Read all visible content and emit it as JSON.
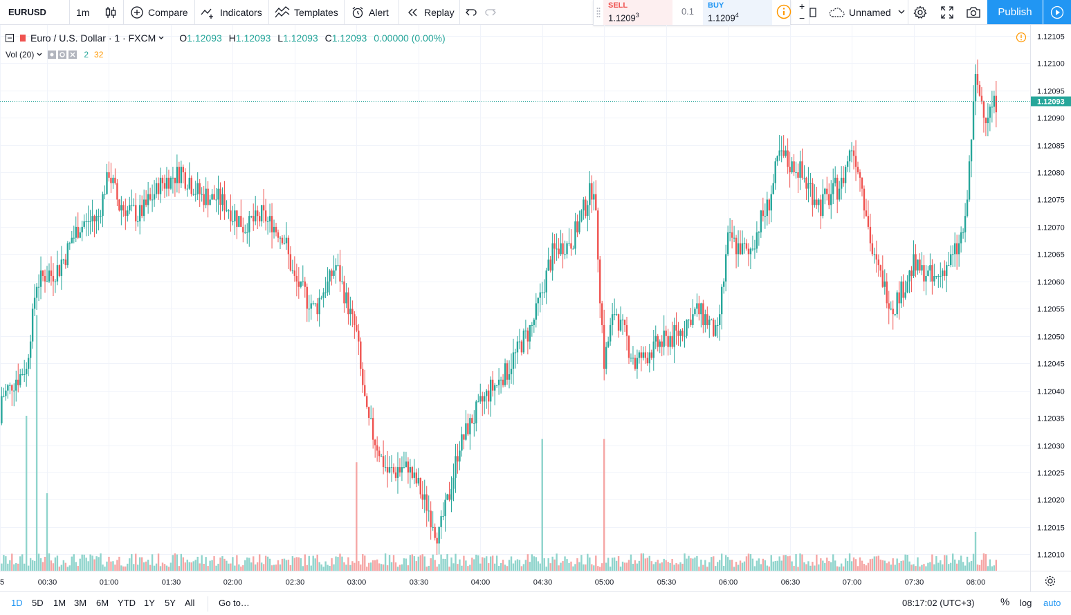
{
  "toolbar": {
    "symbol": "EURUSD",
    "interval": "1m",
    "chart_type_icon": "candles-icon",
    "compare_label": "Compare",
    "indicators_label": "Indicators",
    "templates_label": "Templates",
    "alert_label": "Alert",
    "replay_label": "Replay",
    "layout_name": "Unnamed",
    "publish_label": "Publish"
  },
  "trade": {
    "sell_label": "SELL",
    "sell_price_main": "1.1209",
    "sell_price_sup": "3",
    "spread": "0.1",
    "buy_label": "BUY",
    "buy_price_main": "1.1209",
    "buy_price_sup": "4",
    "plus": "+",
    "minus": "−"
  },
  "legend": {
    "title": "Euro / U.S. Dollar · 1 · FXCM",
    "o_label": "O",
    "o_value": "1.12093",
    "h_label": "H",
    "h_value": "1.12093",
    "l_label": "L",
    "l_value": "1.12093",
    "c_label": "C",
    "c_value": "1.12093",
    "change": "0.00000 (0.00%)",
    "vol_label": "Vol (20)",
    "vol_up": "2",
    "vol_ma": "32"
  },
  "colors": {
    "up": "#26a69a",
    "down": "#ef5350",
    "vol_up": "#8fd4cc",
    "vol_down": "#f5a6a5",
    "accent": "#2196f3",
    "vol_ma": "#ff9800"
  },
  "bottom": {
    "ranges": [
      "1D",
      "5D",
      "1M",
      "3M",
      "6M",
      "YTD",
      "1Y",
      "5Y",
      "All"
    ],
    "active_range": "1D",
    "goto_label": "Go to…",
    "time": "08:17:02 (UTC+3)",
    "percent_label": "%",
    "log_label": "log",
    "auto_label": "auto"
  },
  "chart_data": {
    "type": "candlestick",
    "symbol": "EURUSD",
    "interval": "1m",
    "y_ticks": [
      "1.12105",
      "1.12100",
      "1.12095",
      "1.12090",
      "1.12085",
      "1.12080",
      "1.12075",
      "1.12070",
      "1.12065",
      "1.12060",
      "1.12055",
      "1.12050",
      "1.12045",
      "1.12040",
      "1.12035",
      "1.12030",
      "1.12025",
      "1.12020",
      "1.12015",
      "1.12010"
    ],
    "ylim": [
      1.12007,
      1.12107
    ],
    "x_ticks": [
      "00:30",
      "01:00",
      "01:30",
      "02:00",
      "02:30",
      "03:00",
      "03:30",
      "04:00",
      "04:30",
      "05:00",
      "05:30",
      "06:00",
      "06:30",
      "07:00",
      "07:30",
      "08:00"
    ],
    "last_price_label": "1.12093",
    "last_price": 1.12093,
    "close_path": [
      [
        "00:00",
        1.12034
      ],
      [
        "00:10",
        1.1204
      ],
      [
        "00:20",
        1.12044
      ],
      [
        "00:25",
        1.1206
      ],
      [
        "00:35",
        1.12062
      ],
      [
        "00:45",
        1.1207
      ],
      [
        "00:55",
        1.12072
      ],
      [
        "01:00",
        1.1208
      ],
      [
        "01:05",
        1.12074
      ],
      [
        "01:15",
        1.12072
      ],
      [
        "01:25",
        1.12078
      ],
      [
        "01:35",
        1.1208
      ],
      [
        "01:45",
        1.12076
      ],
      [
        "01:55",
        1.12075
      ],
      [
        "02:05",
        1.1207
      ],
      [
        "02:15",
        1.12072
      ],
      [
        "02:25",
        1.12068
      ],
      [
        "02:30",
        1.1206
      ],
      [
        "02:40",
        1.12055
      ],
      [
        "02:50",
        1.12063
      ],
      [
        "03:00",
        1.1205
      ],
      [
        "03:05",
        1.12035
      ],
      [
        "03:15",
        1.12025
      ],
      [
        "03:25",
        1.12026
      ],
      [
        "03:35",
        1.12018
      ],
      [
        "03:40",
        1.12013
      ],
      [
        "03:50",
        1.1203
      ],
      [
        "03:55",
        1.12034
      ],
      [
        "04:05",
        1.1204
      ],
      [
        "04:15",
        1.12045
      ],
      [
        "04:25",
        1.12052
      ],
      [
        "04:35",
        1.12065
      ],
      [
        "04:45",
        1.12068
      ],
      [
        "04:55",
        1.12078
      ],
      [
        "05:00",
        1.12045
      ],
      [
        "05:05",
        1.12055
      ],
      [
        "05:15",
        1.12045
      ],
      [
        "05:25",
        1.12048
      ],
      [
        "05:35",
        1.1205
      ],
      [
        "05:45",
        1.12055
      ],
      [
        "05:55",
        1.1205
      ],
      [
        "06:00",
        1.12068
      ],
      [
        "06:10",
        1.12065
      ],
      [
        "06:20",
        1.12075
      ],
      [
        "06:25",
        1.12083
      ],
      [
        "06:35",
        1.1208
      ],
      [
        "06:45",
        1.12074
      ],
      [
        "06:55",
        1.12078
      ],
      [
        "07:00",
        1.12085
      ],
      [
        "07:05",
        1.12078
      ],
      [
        "07:10",
        1.12065
      ],
      [
        "07:20",
        1.12055
      ],
      [
        "07:30",
        1.12063
      ],
      [
        "07:40",
        1.1206
      ],
      [
        "07:50",
        1.12065
      ],
      [
        "07:55",
        1.1207
      ],
      [
        "08:00",
        1.12097
      ],
      [
        "08:05",
        1.1209
      ],
      [
        "08:10",
        1.12093
      ]
    ],
    "volume_spikes": [
      [
        "00:25",
        33
      ],
      [
        "00:20",
        20
      ],
      [
        "00:30",
        10
      ],
      [
        "03:00",
        14
      ],
      [
        "04:30",
        17
      ],
      [
        "05:00",
        17
      ],
      [
        "08:00",
        5
      ]
    ],
    "grid": true
  }
}
